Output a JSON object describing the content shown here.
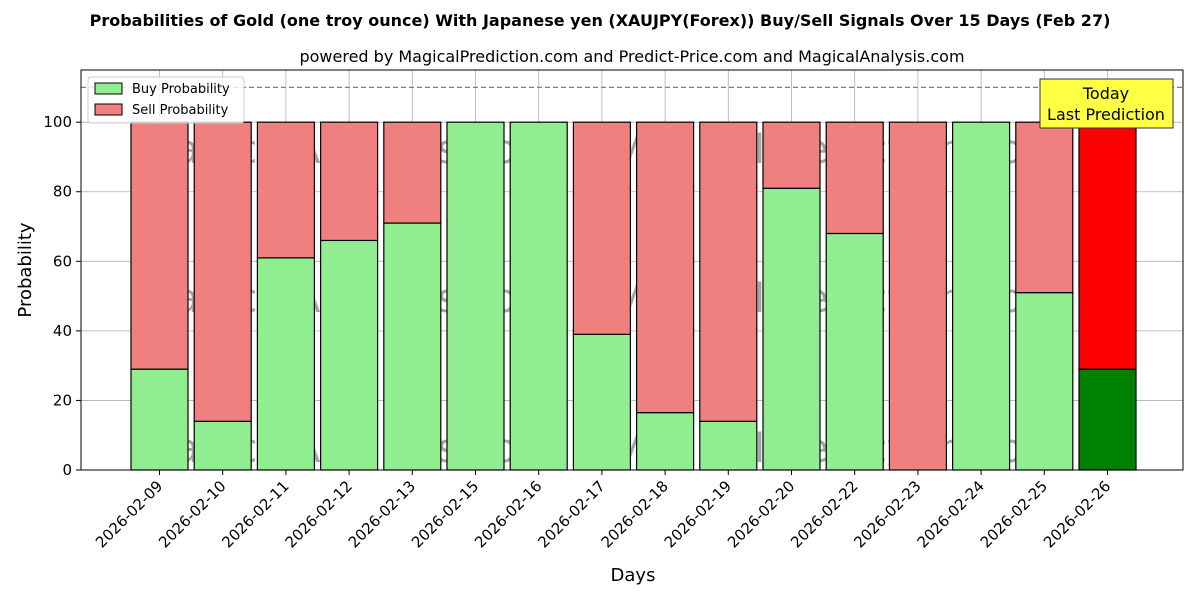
{
  "chart_data": {
    "type": "bar",
    "stacked": true,
    "title": "Probabilities of Gold (one troy ounce) With Japanese yen (XAUJPY(Forex)) Buy/Sell Signals Over 15 Days (Feb 27)",
    "subtitle": "powered by MagicalPrediction.com and Predict-Price.com and MagicalAnalysis.com",
    "xlabel": "Days",
    "ylabel": "Probability",
    "ylim": [
      0,
      115
    ],
    "yticks": [
      0,
      20,
      40,
      60,
      80,
      100
    ],
    "grid": true,
    "legend_position": "top-left",
    "reference_line": 110,
    "categories": [
      "2026-02-09",
      "2026-02-10",
      "2026-02-11",
      "2026-02-12",
      "2026-02-13",
      "2026-02-15",
      "2026-02-16",
      "2026-02-17",
      "2026-02-18",
      "2026-02-19",
      "2026-02-20",
      "2026-02-22",
      "2026-02-23",
      "2026-02-24",
      "2026-02-25",
      "2026-02-26"
    ],
    "series": [
      {
        "name": "Buy Probability",
        "color": "#90ee90",
        "highlight_color": "#008000",
        "values": [
          29,
          14,
          61,
          66,
          71,
          100,
          100,
          39,
          16.5,
          14,
          81,
          68,
          0,
          100,
          51,
          29
        ]
      },
      {
        "name": "Sell Probability",
        "color": "#f08080",
        "highlight_color": "#ff0000",
        "values": [
          71,
          86,
          39,
          34,
          29,
          0,
          0,
          61,
          83.5,
          86,
          19,
          32,
          100,
          0,
          49,
          71
        ]
      }
    ],
    "highlight_index": 15,
    "annotation": {
      "line1": "Today",
      "line2": "Last Prediction",
      "color": "#ffff44"
    },
    "watermarks": [
      "MagicalAnalysis.com",
      "MagicalPrediction.com"
    ]
  }
}
